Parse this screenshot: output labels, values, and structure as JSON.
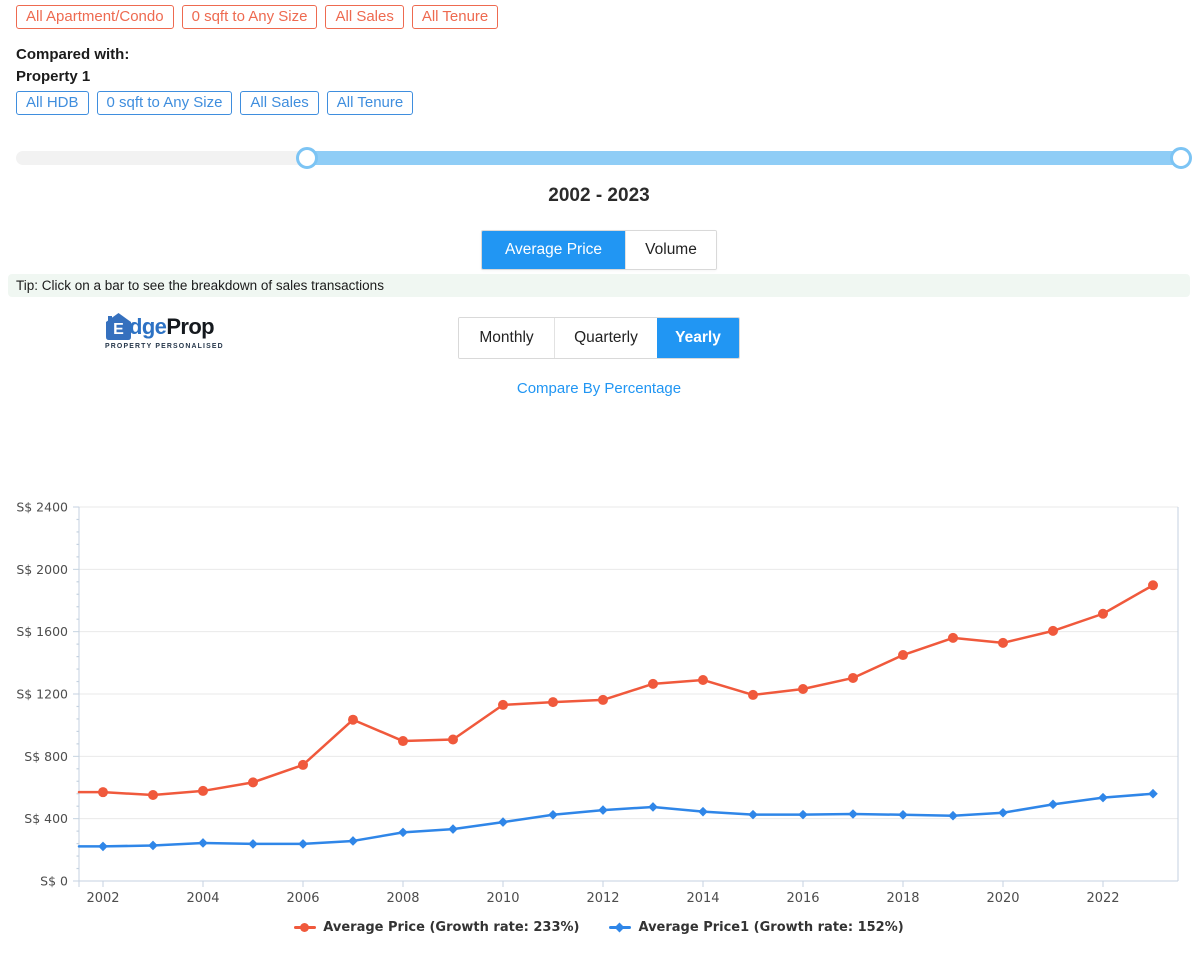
{
  "filters": {
    "primary": [
      "All Apartment/Condo",
      "0 sqft to Any Size",
      "All Sales",
      "All Tenure"
    ],
    "compared_label": "Compared with:",
    "compared_property": "Property 1",
    "secondary": [
      "All HDB",
      "0 sqft to Any Size",
      "All Sales",
      "All Tenure"
    ]
  },
  "slider": {
    "start_pct": 24.78,
    "end_pct": 99.23
  },
  "range_title": "2002 - 2023",
  "metric_tabs": [
    {
      "label": "Average Price",
      "active": true
    },
    {
      "label": "Volume",
      "active": false
    }
  ],
  "tip": "Tip: Click on a bar to see the breakdown of sales transactions",
  "logo": {
    "initial": "E",
    "rest_blue": "dge",
    "rest_dark": "Prop",
    "tagline": "PROPERTY PERSONALISED"
  },
  "period_tabs": [
    {
      "label": "Monthly",
      "active": false
    },
    {
      "label": "Quarterly",
      "active": false
    },
    {
      "label": "Yearly",
      "active": true
    }
  ],
  "compare_link": "Compare By Percentage",
  "colors": {
    "accent_blue": "#2196F3",
    "chip_orange": "#EE6A50",
    "chip_blue": "#3F8EDE",
    "slider_range": "#8FCDF6",
    "tip_background": "#F0F7F2"
  },
  "chart_data": {
    "type": "line",
    "x": [
      2002,
      2003,
      2004,
      2005,
      2006,
      2007,
      2008,
      2009,
      2010,
      2011,
      2012,
      2013,
      2014,
      2015,
      2016,
      2017,
      2018,
      2019,
      2020,
      2021,
      2022,
      2023
    ],
    "series": [
      {
        "name": "Average Price (Growth rate: 233%)",
        "color": "#F0593C",
        "marker": "circle",
        "values": [
          570,
          552,
          578,
          633,
          745,
          1035,
          898,
          908,
          1130,
          1148,
          1162,
          1265,
          1290,
          1194,
          1232,
          1303,
          1450,
          1560,
          1528,
          1605,
          1715,
          1898
        ]
      },
      {
        "name": "Average Price1 (Growth rate: 152%)",
        "color": "#2F86E8",
        "marker": "diamond",
        "values": [
          222,
          228,
          244,
          238,
          238,
          257,
          312,
          333,
          378,
          425,
          455,
          475,
          445,
          426,
          426,
          430,
          425,
          419,
          438,
          492,
          535,
          560
        ]
      }
    ],
    "currency_prefix": "S$",
    "ylim": [
      0,
      2400
    ],
    "ytick_step": 400,
    "ytick_minor_step": 80,
    "xtick_step": 2,
    "grid": "horizontal",
    "legend_position": "bottom"
  }
}
